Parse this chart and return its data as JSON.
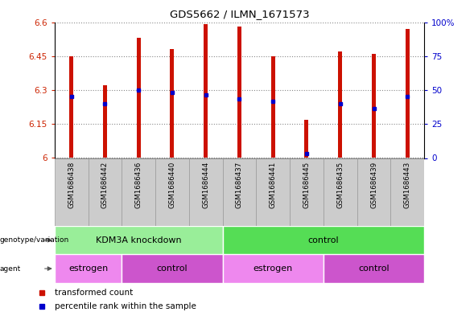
{
  "title": "GDS5662 / ILMN_1671573",
  "samples": [
    "GSM1686438",
    "GSM1686442",
    "GSM1686436",
    "GSM1686440",
    "GSM1686444",
    "GSM1686437",
    "GSM1686441",
    "GSM1686445",
    "GSM1686435",
    "GSM1686439",
    "GSM1686443"
  ],
  "red_values": [
    6.45,
    6.32,
    6.53,
    6.48,
    6.59,
    6.58,
    6.45,
    6.17,
    6.47,
    6.46,
    6.57
  ],
  "blue_values": [
    6.27,
    6.24,
    6.3,
    6.29,
    6.28,
    6.26,
    6.25,
    6.02,
    6.24,
    6.22,
    6.27
  ],
  "ylim_left": [
    6.0,
    6.6
  ],
  "yticks_left": [
    6.0,
    6.15,
    6.3,
    6.45,
    6.6
  ],
  "ytick_labels_left": [
    "6",
    "6.15",
    "6.3",
    "6.45",
    "6.6"
  ],
  "ylim_right": [
    0,
    100
  ],
  "yticks_right": [
    0,
    25,
    50,
    75,
    100
  ],
  "ytick_labels_right": [
    "0",
    "25",
    "50",
    "75",
    "100%"
  ],
  "bar_color": "#cc1100",
  "marker_color": "#0000cc",
  "groups": [
    {
      "label": "KDM3A knockdown",
      "start": 0,
      "end": 5,
      "color": "#99ee99"
    },
    {
      "label": "control",
      "start": 5,
      "end": 11,
      "color": "#55dd55"
    }
  ],
  "agents": [
    {
      "label": "estrogen",
      "start": 0,
      "end": 2,
      "color": "#ee88ee"
    },
    {
      "label": "control",
      "start": 2,
      "end": 5,
      "color": "#cc55cc"
    },
    {
      "label": "estrogen",
      "start": 5,
      "end": 8,
      "color": "#ee88ee"
    },
    {
      "label": "control",
      "start": 8,
      "end": 11,
      "color": "#cc55cc"
    }
  ],
  "legend_items": [
    {
      "label": "transformed count",
      "color": "#cc1100"
    },
    {
      "label": "percentile rank within the sample",
      "color": "#0000cc"
    }
  ],
  "left_axis_color": "#cc2200",
  "right_axis_color": "#0000cc",
  "bar_width": 0.12,
  "background_color": "#ffffff",
  "plot_bg_color": "#ffffff",
  "sample_cell_color": "#cccccc",
  "sample_cell_edge": "#999999"
}
